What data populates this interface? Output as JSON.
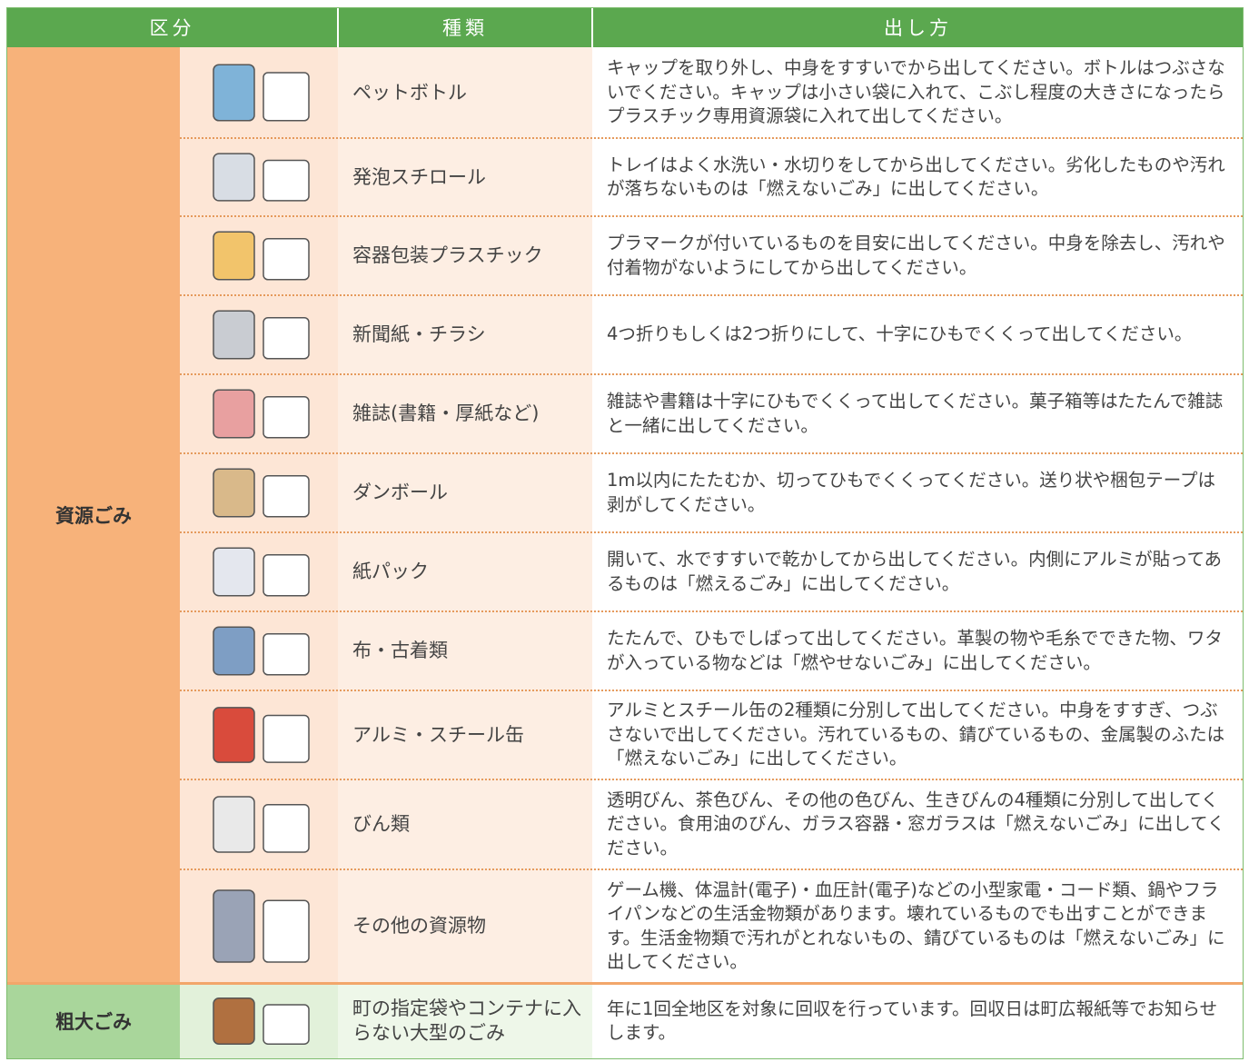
{
  "table": {
    "headers": [
      "区分",
      "種類",
      "出し方"
    ],
    "groups": [
      {
        "label": "資源ごみ",
        "rows": [
          {
            "type": "ペットボトル",
            "how": "キャップを取り外し、中身をすすいでから出してください。ボトルはつぶさないでください。キャップは小さい袋に入れて、こぶし程度の大きさになったらプラスチック専用資源袋に入れて出してください。"
          },
          {
            "type": "発泡スチロール",
            "how": "トレイはよく水洗い・水切りをしてから出してください。劣化したものや汚れが落ちないものは「燃えないごみ」に出してください。"
          },
          {
            "type": "容器包装プラスチック",
            "how": "プラマークが付いているものを目安に出してください。中身を除去し、汚れや付着物がないようにしてから出してください。"
          },
          {
            "type": "新聞紙・チラシ",
            "how": "4つ折りもしくは2つ折りにして、十字にひもでくくって出してください。"
          },
          {
            "type": "雑誌(書籍・厚紙など)",
            "how": "雑誌や書籍は十字にひもでくくって出してください。菓子箱等はたたんで雑誌と一緒に出してください。"
          },
          {
            "type": "ダンボール",
            "how": "1m以内にたたむか、切ってひもでくくってください。送り状や梱包テープは剥がしてください。"
          },
          {
            "type": "紙パック",
            "how": "開いて、水ですすいで乾かしてから出してください。内側にアルミが貼ってあるものは「燃えるごみ」に出してください。"
          },
          {
            "type": "布・古着類",
            "how": "たたんで、ひもでしばって出してください。革製の物や毛糸でできた物、ワタが入っている物などは「燃やせないごみ」に出してください。"
          },
          {
            "type": "アルミ・スチール缶",
            "how": "アルミとスチール缶の2種類に分別して出してください。中身をすすぎ、つぶさないで出してください。汚れているもの、錆びているもの、金属製のふたは「燃えないごみ」に出してください。"
          },
          {
            "type": "びん類",
            "how": "透明びん、茶色びん、その他の色びん、生きびんの4種類に分別して出してください。食用油のびん、ガラス容器・窓ガラスは「燃えないごみ」に出してください。"
          },
          {
            "type": "その他の資源物",
            "how": "ゲーム機、体温計(電子)・血圧計(電子)などの小型家電・コード類、鍋やフライパンなどの生活金物類があります。壊れているものでも出すことができます。生活金物類で汚れがとれないもの、錆びているものは「燃えないごみ」に出してください。"
          }
        ]
      },
      {
        "label": "粗大ごみ",
        "rows": [
          {
            "type": "町の指定袋やコンテナに入らない大型のごみ",
            "how": "年に1回全地区を対象に回収を行っています。回収日は町広報紙等でお知らせします。"
          }
        ]
      }
    ]
  }
}
